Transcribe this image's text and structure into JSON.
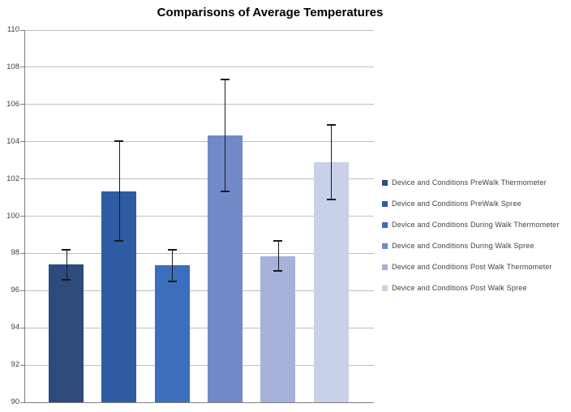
{
  "chart_data": {
    "type": "bar",
    "title": "Comparisons of Average Temperatures",
    "xlabel": "",
    "ylabel": "",
    "categories": [
      "Device and Conditions PreWalk Thermometer",
      "Device and Conditions PreWalk Spree",
      "Device and Conditions During Walk Thermometer",
      "Device and Conditions During Walk Spree",
      "Device and Conditions Post Walk Thermometer",
      "Device and Conditions Post Walk Spree"
    ],
    "values": [
      97.4,
      101.35,
      97.35,
      104.35,
      97.85,
      102.9
    ],
    "error_bars": [
      0.8,
      2.7,
      0.85,
      3.0,
      0.8,
      2.0
    ],
    "bar_colors": [
      "#2d4b7d",
      "#2f5ba3",
      "#3c6ebe",
      "#7289c8",
      "#a6b2da",
      "#c8d1e8"
    ],
    "ylim": [
      90,
      110
    ],
    "ytick_step": 2,
    "ytick_labels": [
      "90",
      "92",
      "94",
      "96",
      "98",
      "100",
      "102",
      "104",
      "106",
      "108",
      "110"
    ],
    "grid": true,
    "legend_position": "right",
    "colors": {
      "gridline": "#bfbfbf",
      "axis": "#808080",
      "error_bar": "#1a1a1a",
      "title_text": "#000000",
      "tick_text": "#404040",
      "legend_text": "#404040",
      "background": "#ffffff"
    }
  }
}
